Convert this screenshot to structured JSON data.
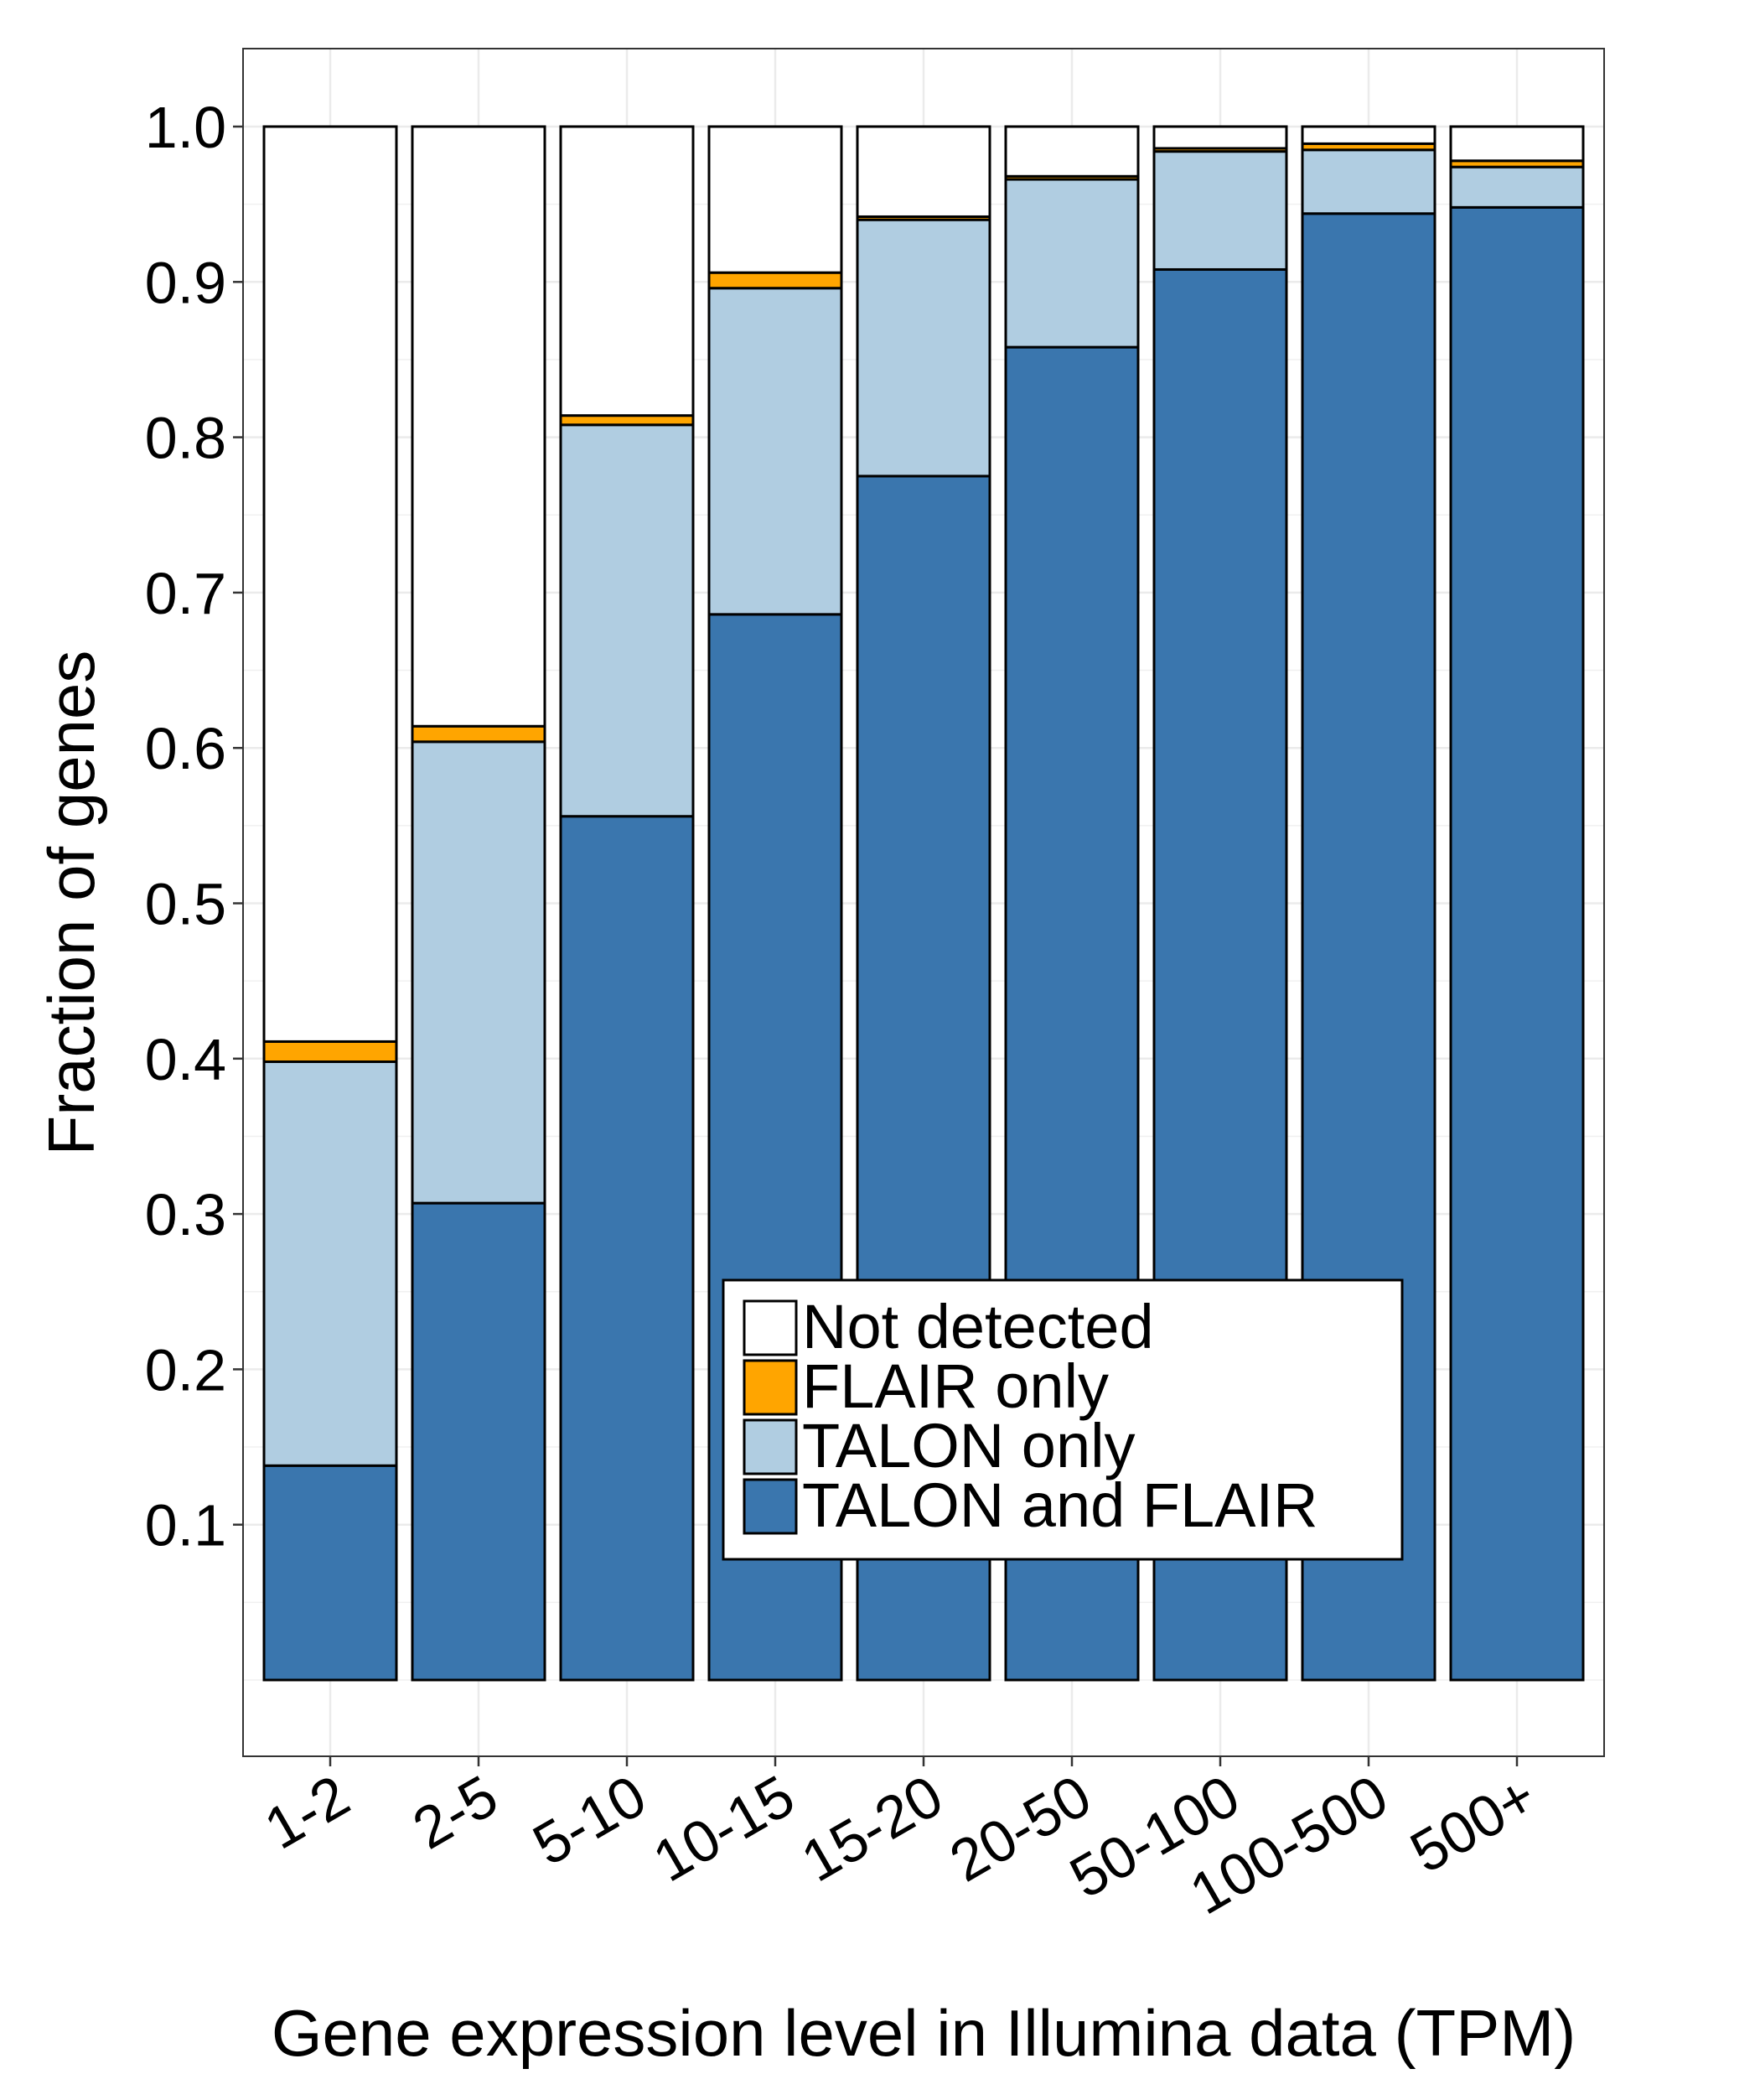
{
  "chart_data": {
    "type": "bar",
    "stacked": true,
    "xlabel": "Gene expression level in Illumina data (TPM)",
    "ylabel": "Fraction of genes",
    "ylim": [
      0,
      1.0
    ],
    "yticks": [
      0.1,
      0.2,
      0.3,
      0.4,
      0.5,
      0.6,
      0.7,
      0.8,
      0.9,
      1.0
    ],
    "ytick_labels": [
      "0.1",
      "0.2",
      "0.3",
      "0.4",
      "0.5",
      "0.6",
      "0.7",
      "0.8",
      "0.9",
      "1.0"
    ],
    "categories": [
      "1-2",
      "2-5",
      "5-10",
      "10-15",
      "15-20",
      "20-50",
      "50-100",
      "100-500",
      "500+"
    ],
    "grid": true,
    "legend_position": "bottom-center",
    "series": [
      {
        "name": "TALON and FLAIR",
        "color": "#3a76ae",
        "values": [
          0.138,
          0.307,
          0.556,
          0.686,
          0.775,
          0.858,
          0.908,
          0.944,
          0.948
        ]
      },
      {
        "name": "TALON only",
        "color": "#b0cde1",
        "values": [
          0.26,
          0.297,
          0.252,
          0.21,
          0.165,
          0.108,
          0.076,
          0.041,
          0.026
        ]
      },
      {
        "name": "FLAIR only",
        "color": "#ffa500",
        "values": [
          0.013,
          0.01,
          0.006,
          0.01,
          0.002,
          0.002,
          0.002,
          0.004,
          0.004
        ]
      },
      {
        "name": "Not detected",
        "color": "#ffffff",
        "values": [
          0.589,
          0.386,
          0.186,
          0.094,
          0.058,
          0.032,
          0.014,
          0.011,
          0.022
        ]
      }
    ],
    "legend_entries": [
      "Not detected",
      "FLAIR only",
      "TALON only",
      "TALON and FLAIR"
    ]
  }
}
